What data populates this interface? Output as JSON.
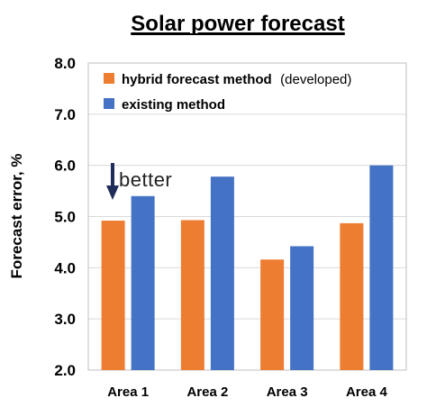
{
  "chart_data": {
    "type": "bar",
    "title": "Solar power forecast",
    "ylabel": "Forecast error, %",
    "xlabel": "",
    "ylim": [
      2.0,
      8.0
    ],
    "yticks": [
      "2.0",
      "3.0",
      "4.0",
      "5.0",
      "6.0",
      "7.0",
      "8.0"
    ],
    "grid": "horizontal",
    "legend_position": "top-left",
    "categories": [
      "Area 1",
      "Area 2",
      "Area 3",
      "Area 4"
    ],
    "series": [
      {
        "name": "hybrid forecast method",
        "name_suffix": "(developed)",
        "color": "#ed7d31",
        "values": [
          4.92,
          4.93,
          4.16,
          4.87
        ]
      },
      {
        "name": "existing method",
        "color": "#4472c4",
        "values": [
          5.4,
          5.78,
          4.42,
          6.0
        ]
      }
    ],
    "annotation": {
      "text": "better",
      "arrow_color": "#1f2d5a"
    }
  }
}
